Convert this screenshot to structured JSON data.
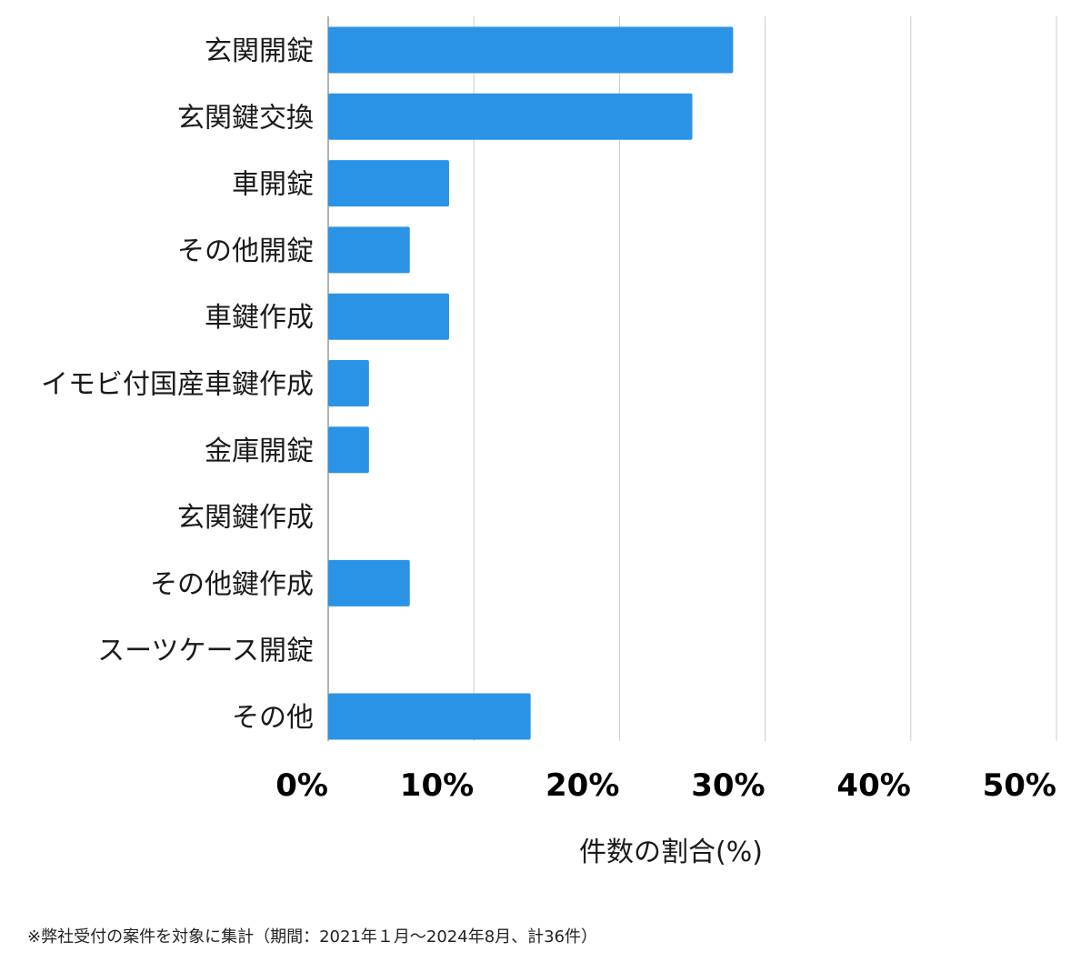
{
  "chart_data": {
    "type": "bar",
    "orientation": "horizontal",
    "categories": [
      "玄関開錠",
      "玄関鍵交換",
      "車開錠",
      "その他開錠",
      "車鍵作成",
      "イモビ付国産車鍵作成",
      "金庫開錠",
      "玄関鍵作成",
      "その他鍵作成",
      "スーツケース開錠",
      "その他"
    ],
    "values": [
      27.8,
      25.0,
      8.3,
      5.6,
      8.3,
      2.8,
      2.8,
      0,
      5.6,
      0,
      13.9
    ],
    "xlim": [
      0,
      50
    ],
    "xticks": [
      0,
      10,
      20,
      30,
      40,
      50
    ],
    "xtick_labels": [
      "0%",
      "10%",
      "20%",
      "30%",
      "40%",
      "50%"
    ],
    "xlabel": "件数の割合(%)",
    "ylabel": "",
    "grid": true,
    "bar_color": "#2a93e6",
    "grid_color": "#cccccc",
    "axis_color": "#999999"
  },
  "footnote": "※弊社受付の案件を対象に集計（期間：2021年１月〜2024年8月、計36件）"
}
